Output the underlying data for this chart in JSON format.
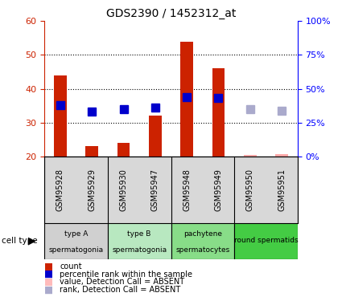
{
  "title": "GDS2390 / 1452312_at",
  "samples": [
    "GSM95928",
    "GSM95929",
    "GSM95930",
    "GSM95947",
    "GSM95948",
    "GSM95949",
    "GSM95950",
    "GSM95951"
  ],
  "bar_values": [
    44,
    23,
    24,
    32,
    54,
    46,
    null,
    null
  ],
  "bar_colors_present": "#cc2200",
  "bar_colors_absent": "#ffaaaa",
  "rank_values": [
    38,
    33,
    35,
    36,
    44,
    43,
    null,
    null
  ],
  "rank_colors_present": "#0000cc",
  "rank_colors_absent": "#aaaacc",
  "absent_bar": [
    null,
    null,
    null,
    null,
    null,
    null,
    20.5,
    20.8
  ],
  "absent_rank": [
    null,
    null,
    null,
    null,
    null,
    null,
    35,
    34
  ],
  "ylim_left": [
    20,
    60
  ],
  "ylim_right": [
    0,
    100
  ],
  "yticks_left": [
    20,
    30,
    40,
    50,
    60
  ],
  "ytick_labels_right": [
    "0%",
    "25%",
    "50%",
    "75%",
    "100%"
  ],
  "ytick_vals_right": [
    0,
    25,
    50,
    75,
    100
  ],
  "grid_lines": [
    30,
    40,
    50
  ],
  "cell_groups": [
    {
      "label": "type A\nspermatogonia",
      "start": 0,
      "end": 2,
      "color": "#d0d0d0"
    },
    {
      "label": "type B\nspermatogonia",
      "start": 2,
      "end": 4,
      "color": "#b8e8c0"
    },
    {
      "label": "pachytene\nspermatocytes",
      "start": 4,
      "end": 6,
      "color": "#88dd88"
    },
    {
      "label": "round spermatids",
      "start": 6,
      "end": 8,
      "color": "#44cc44"
    }
  ],
  "legend_items": [
    {
      "label": "count",
      "color": "#cc2200"
    },
    {
      "label": "percentile rank within the sample",
      "color": "#0000cc"
    },
    {
      "label": "value, Detection Call = ABSENT",
      "color": "#ffbbbb"
    },
    {
      "label": "rank, Detection Call = ABSENT",
      "color": "#aaaacc"
    }
  ],
  "left_axis_color": "#cc2200",
  "right_axis_color": "#0000ff",
  "bar_width": 0.4,
  "marker_size": 7,
  "sample_bg_color": "#d8d8d8"
}
